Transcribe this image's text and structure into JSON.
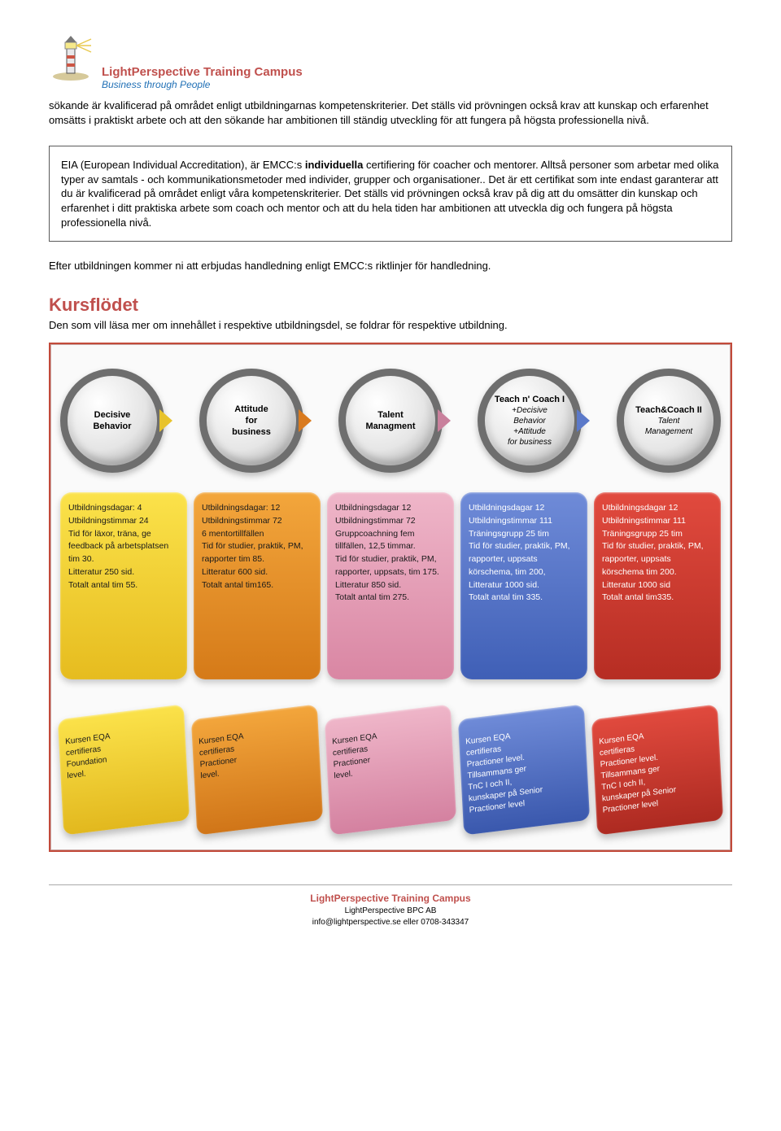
{
  "header": {
    "title": "LightPerspective Training Campus",
    "subtitle": "Business through People"
  },
  "intro_para": "sökande är kvalificerad på området enligt utbildningarnas kompetenskriterier. Det ställs vid prövningen också krav att kunskap och erfarenhet omsätts i praktiskt arbete och att den sökande har ambitionen till ständig utveckling för att fungera på högsta professionella nivå.",
  "box": {
    "line1_pre": "EIA (European Individual Accreditation), är EMCC:s ",
    "line1_bold": "individuella",
    "line1_post": " certifiering för coacher och mentorer. Alltså personer som arbetar med olika typer av samtals - och kommunikationsmetoder med individer, grupper och organisationer.. Det är ett certifikat som inte endast garanterar att du är kvalificerad på området enligt våra kompetenskriterier. Det ställs vid prövningen också krav på dig att du omsätter din kunskap och erfarenhet i ditt praktiska arbete som coach och mentor och att du hela tiden har ambitionen att utveckla dig och fungera på högsta professionella nivå."
  },
  "after_box": "Efter utbildningen kommer ni att erbjudas handledning enligt EMCC:s riktlinjer för handledning.",
  "section": {
    "title": "Kursflödet",
    "sub": "Den som vill läsa mer om innehållet i respektive utbildningsdel, se foldrar för respektive utbildning."
  },
  "circles": [
    {
      "title": "Decisive\nBehavior",
      "sub": "",
      "ring": "radial-gradient(circle at 35% 30%, #ffffff, #e5e5e5 55%, #9a9a9a 100%)",
      "border": "#6e6e6e",
      "arrow": "#e8c32c"
    },
    {
      "title": "Attitude\nfor\nbusiness",
      "sub": "",
      "ring": "radial-gradient(circle at 35% 30%, #ffffff, #e6e6e6 55%, #9c9c9c 100%)",
      "border": "#6e6e6e",
      "arrow": "#d97a1e"
    },
    {
      "title": "Talent\nManagment",
      "sub": "",
      "ring": "radial-gradient(circle at 35% 30%, #ffffff, #e6e6e6 55%, #9c9c9c 100%)",
      "border": "#6e6e6e",
      "arrow": "#c9809c"
    },
    {
      "title": "Teach n' Coach I",
      "sub": "+Decisive\nBehavior\n+Attitude\nfor business",
      "ring": "radial-gradient(circle at 35% 30%, #ffffff, #e6e6e6 55%, #9c9c9c 100%)",
      "border": "#6e6e6e",
      "arrow": "#5b79c9"
    },
    {
      "title": "Teach&Coach II",
      "sub": "Talent\nManagement",
      "ring": "radial-gradient(circle at 35% 30%, #ffffff, #e6e6e6 55%, #9c9c9c 100%)",
      "border": "#6e6e6e",
      "arrow": ""
    }
  ],
  "cards": [
    {
      "bg": "linear-gradient(180deg,#fbe24a,#e6bc1f)",
      "text": "Utbildningsdagar: 4\nUtbildningstimmar 24\nTid för läxor, träna, ge feedback på arbetsplatsen tim 30.\nLitteratur 250 sid.\nTotalt antal tim 55.",
      "color": "#1a1a1a"
    },
    {
      "bg": "linear-gradient(180deg,#f3a63c,#d57a18)",
      "text": "Utbildningsdagar: 12\nUtbildningstimmar 72\n6 mentortillfällen\nTid för studier, praktik, PM, rapporter tim 85.\nLitteratur 600 sid.\nTotalt antal tim165.",
      "color": "#1a1a1a"
    },
    {
      "bg": "linear-gradient(180deg,#efb6c9,#d986a3)",
      "text": "Utbildningsdagar 12\nUtbildningstimmar 72\nGruppcoachning fem tillfällen, 12,5 timmar.\nTid för studier, praktik, PM, rapporter, uppsats, tim 175.\nLitteratur 850 sid.\nTotalt antal tim 275.",
      "color": "#1a1a1a"
    },
    {
      "bg": "linear-gradient(180deg,#6f8bd8,#3f5fb6)",
      "text": "Utbildningsdagar 12\nUtbildningstimmar 111\nTräningsgrupp 25 tim\nTid för studier, praktik, PM, rapporter, uppsats körschema, tim 200,\nLitteratur 1000 sid.\nTotalt antal tim 335.",
      "color": "#ffffff"
    },
    {
      "bg": "linear-gradient(180deg,#e14a3e,#b62d23)",
      "text": "Utbildningsdagar 12\nUtbildningstimmar 111\nTräningsgrupp 25 tim\nTid för studier, praktik, PM, rapporter, uppsats körschema tim 200.\nLitteratur 1000 sid\nTotalt antal tim335.",
      "color": "#ffffff"
    }
  ],
  "tilts": [
    {
      "bg": "linear-gradient(180deg,#fbe24a,#e2b81e)",
      "text": "Kursen EQA\ncertifieras\nFoundation\nlevel.",
      "color": "#1a1a1a"
    },
    {
      "bg": "linear-gradient(180deg,#f3a63c,#d07518)",
      "text": "Kursen EQA\ncertifieras\nPractioner\nlevel.",
      "color": "#1a1a1a"
    },
    {
      "bg": "linear-gradient(180deg,#efb6c9,#d481a0)",
      "text": "Kursen EQA\ncertifieras\nPractioner\nlevel.",
      "color": "#1a1a1a"
    },
    {
      "bg": "linear-gradient(180deg,#6f8bd8,#3a58ad)",
      "text": "Kursen EQA\ncertifieras\nPractioner level.\nTillsammans ger\nTnC I och II,\nkunskaper på Senior\nPractioner level",
      "color": "#ffffff"
    },
    {
      "bg": "linear-gradient(180deg,#e14a3e,#ad2a21)",
      "text": "Kursen EQA\ncertifieras\nPractioner level.\nTillsammans ger\nTnC I och II,\nkunskaper på Senior\nPractioner level",
      "color": "#ffffff"
    }
  ],
  "footer": {
    "title": "LightPerspective Training Campus",
    "line2": "LightPerspective BPC AB",
    "line3": "info@lightperspective.se eller 0708-343347"
  }
}
